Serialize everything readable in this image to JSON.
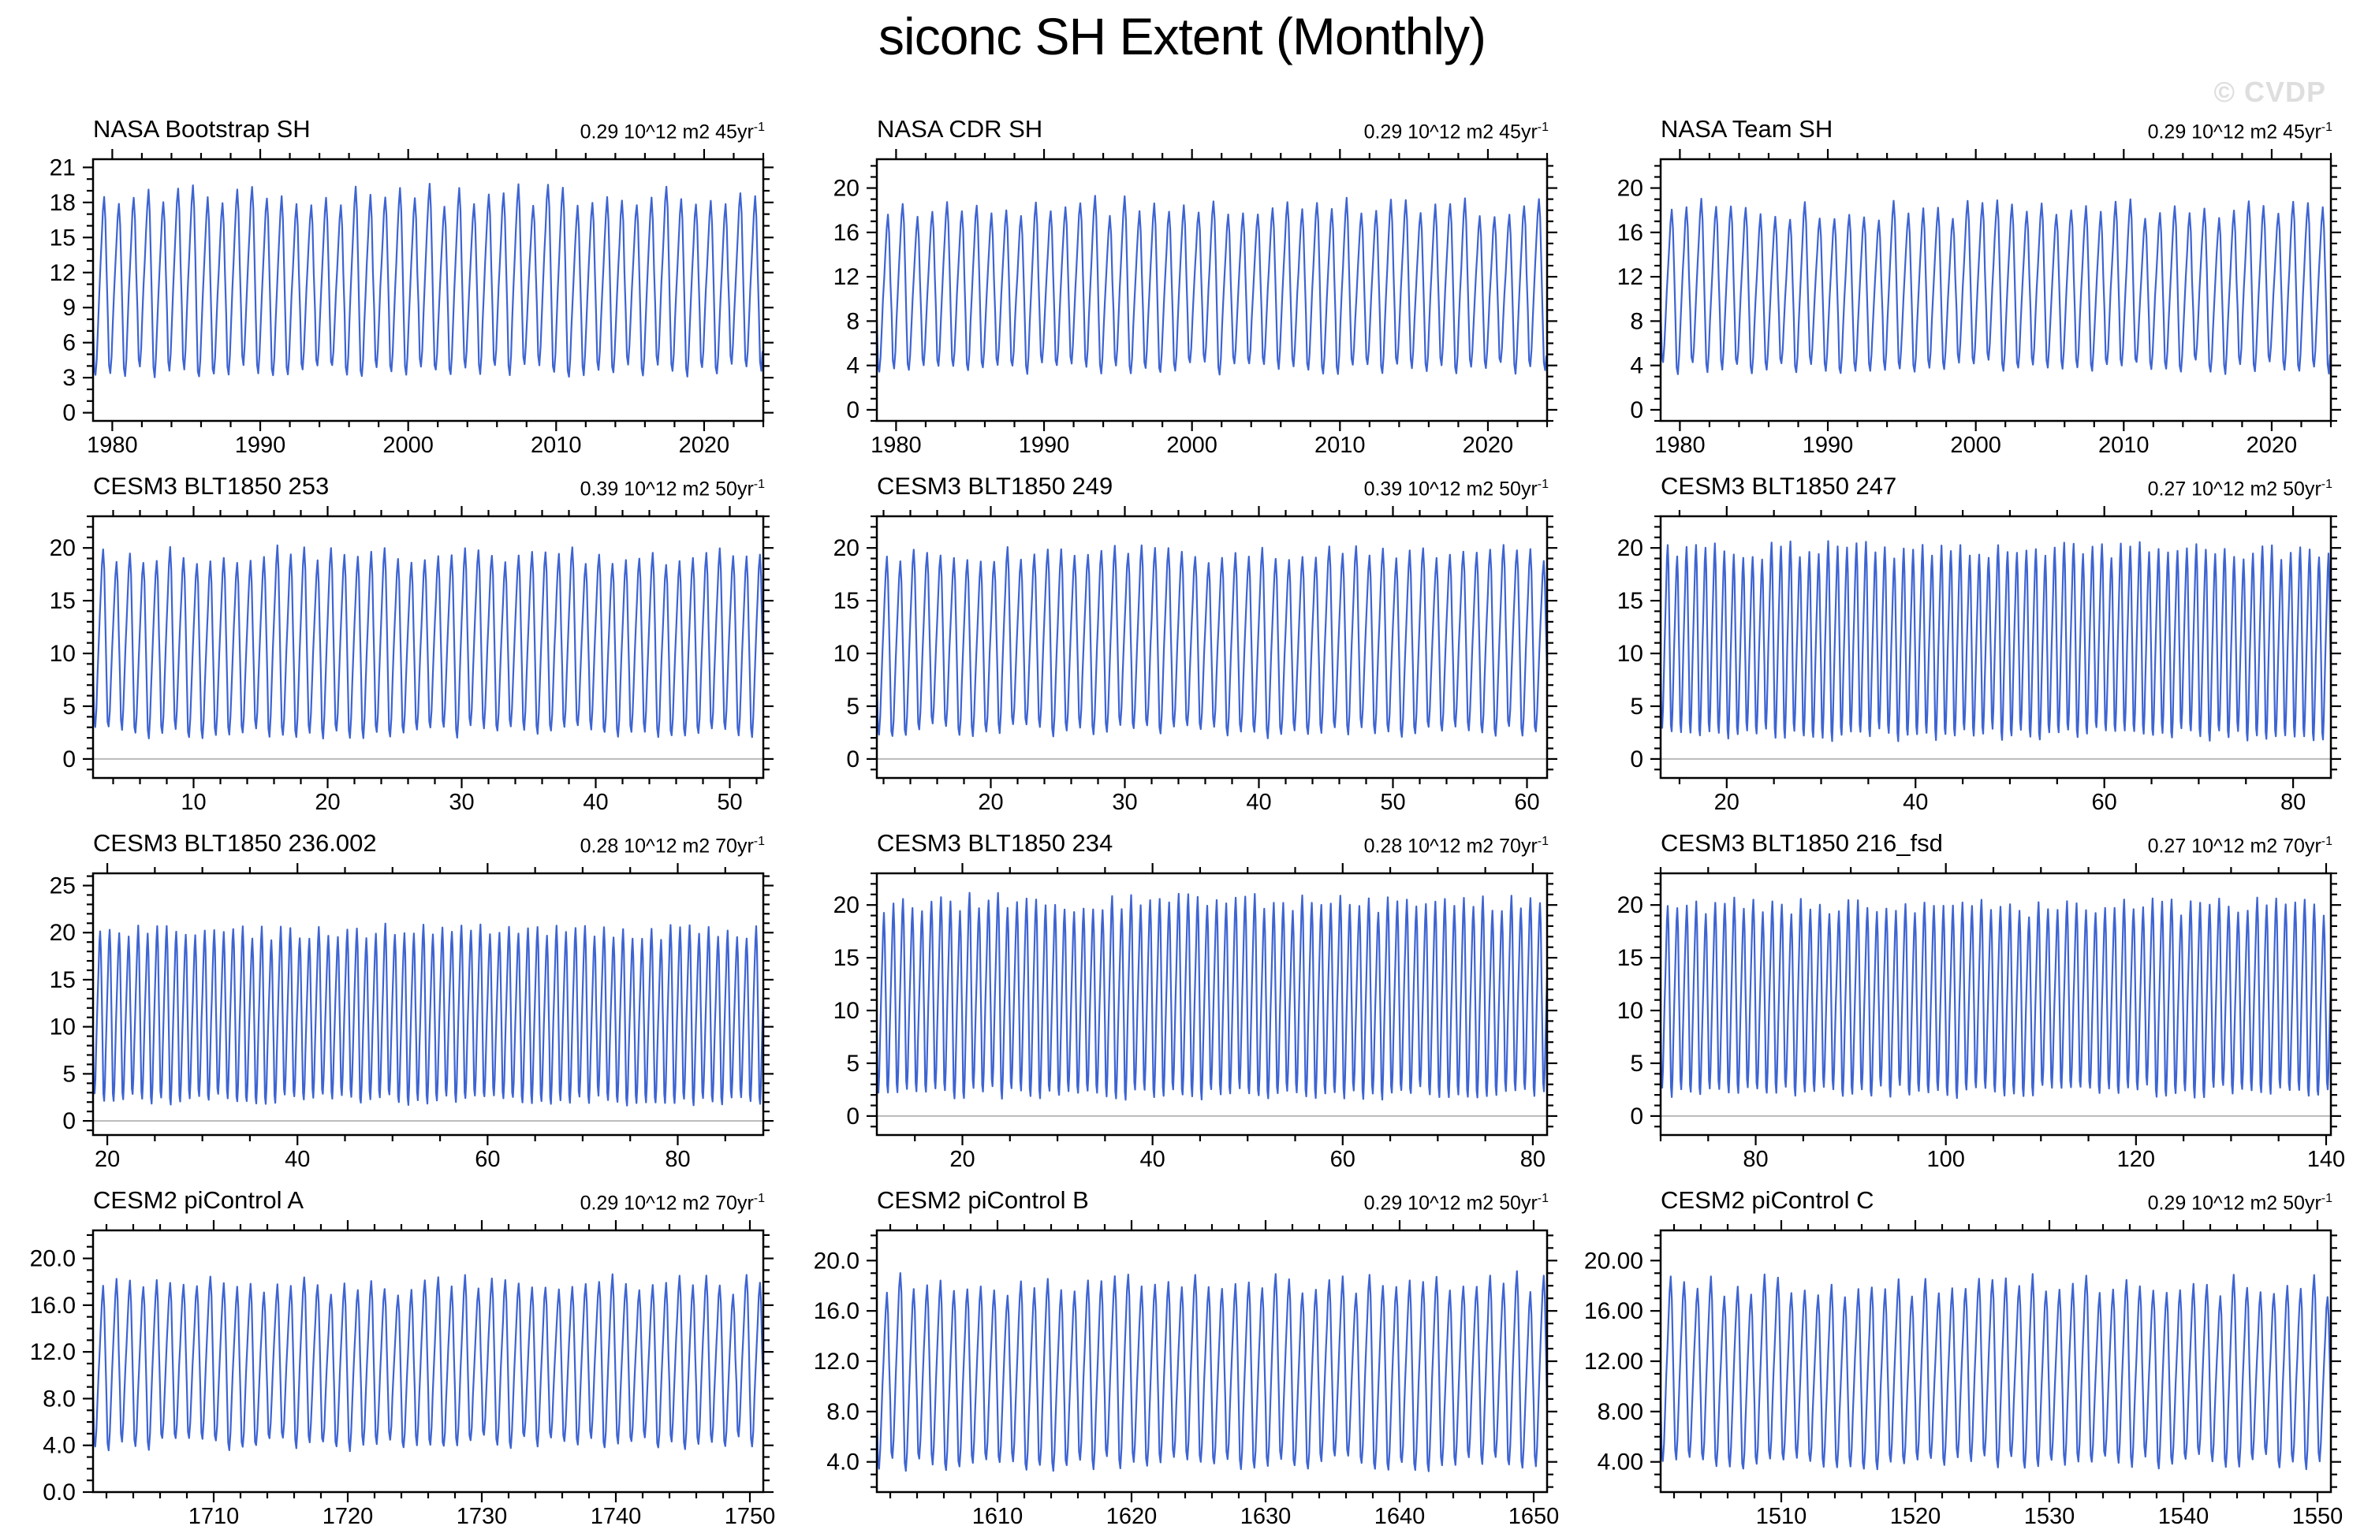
{
  "page": {
    "title": "siconc SH Extent (Monthly)",
    "watermark": "© CVDP"
  },
  "colors": {
    "line": "#3E64D2",
    "zero_line": "#b9b9b9",
    "frame": "#000000",
    "watermark": "#dedede"
  },
  "chart_data": {
    "type": "line",
    "layout": {
      "rows": 4,
      "cols": 3,
      "grid": "off",
      "legend": "none"
    },
    "description": "Monthly Southern Hemisphere sea ice extent (10^12 m2) seasonal-cycle time series; each panel oscillates annually between its summer minimum and winter maximum.",
    "panels": [
      {
        "title": "NASA Bootstrap SH",
        "annotation": "0.29 10^12 m2 45yr",
        "annotation_sup": "-1",
        "x_range": [
          1978.7,
          2024
        ],
        "x_ticks": [
          1980,
          1990,
          2000,
          2010,
          2020
        ],
        "x_tick_labels": [
          "1980",
          "1990",
          "2000",
          "2010",
          "2020"
        ],
        "x_minor_step": 2,
        "y_range": [
          -0.7,
          21.7
        ],
        "y_ticks": [
          0,
          3,
          6,
          9,
          12,
          15,
          18,
          21
        ],
        "y_tick_labels": [
          "0",
          "3",
          "6",
          "9",
          "12",
          "15",
          "18",
          "21"
        ],
        "y_minor_step": 1,
        "zero_line": false,
        "summer_min": 3.3,
        "winter_max": 18.6,
        "seed": 11
      },
      {
        "title": "NASA CDR SH",
        "annotation": "0.29 10^12 m2 45yr",
        "annotation_sup": "-1",
        "x_range": [
          1978.7,
          2024
        ],
        "x_ticks": [
          1980,
          1990,
          2000,
          2010,
          2020
        ],
        "x_tick_labels": [
          "1980",
          "1990",
          "2000",
          "2010",
          "2020"
        ],
        "x_minor_step": 2,
        "y_range": [
          -1.0,
          22.6
        ],
        "y_ticks": [
          0,
          4,
          8,
          12,
          16,
          20
        ],
        "y_tick_labels": [
          "0",
          "4",
          "8",
          "12",
          "16",
          "20"
        ],
        "y_minor_step": 1,
        "zero_line": false,
        "summer_min": 3.4,
        "winter_max": 18.3,
        "seed": 22
      },
      {
        "title": "NASA Team SH",
        "annotation": "0.29 10^12 m2 45yr",
        "annotation_sup": "-1",
        "x_range": [
          1978.7,
          2024
        ],
        "x_ticks": [
          1980,
          1990,
          2000,
          2010,
          2020
        ],
        "x_tick_labels": [
          "1980",
          "1990",
          "2000",
          "2010",
          "2020"
        ],
        "x_minor_step": 2,
        "y_range": [
          -1.0,
          22.6
        ],
        "y_ticks": [
          0,
          4,
          8,
          12,
          16,
          20
        ],
        "y_tick_labels": [
          "0",
          "4",
          "8",
          "12",
          "16",
          "20"
        ],
        "y_minor_step": 1,
        "zero_line": false,
        "summer_min": 3.6,
        "winter_max": 18.0,
        "seed": 33
      },
      {
        "title": "CESM3 BLT1850 253",
        "annotation": "0.39 10^12 m2 50yr",
        "annotation_sup": "-1",
        "x_range": [
          2.5,
          52.5
        ],
        "x_ticks": [
          10,
          20,
          30,
          40,
          50
        ],
        "x_tick_labels": [
          "10",
          "20",
          "30",
          "40",
          "50"
        ],
        "x_minor_step": 2,
        "y_range": [
          -1.8,
          23.0
        ],
        "y_ticks": [
          0,
          5,
          10,
          15,
          20
        ],
        "y_tick_labels": [
          "0",
          "5",
          "10",
          "15",
          "20"
        ],
        "y_minor_step": 1,
        "zero_line": true,
        "summer_min": 2.2,
        "winter_max": 19.4,
        "seed": 44
      },
      {
        "title": "CESM3 BLT1850 249",
        "annotation": "0.39 10^12 m2 50yr",
        "annotation_sup": "-1",
        "x_range": [
          11.5,
          61.5
        ],
        "x_ticks": [
          20,
          30,
          40,
          50,
          60
        ],
        "x_tick_labels": [
          "20",
          "30",
          "40",
          "50",
          "60"
        ],
        "x_minor_step": 2,
        "y_range": [
          -1.8,
          23.0
        ],
        "y_ticks": [
          0,
          5,
          10,
          15,
          20
        ],
        "y_tick_labels": [
          "0",
          "5",
          "10",
          "15",
          "20"
        ],
        "y_minor_step": 1,
        "zero_line": true,
        "summer_min": 2.3,
        "winter_max": 19.5,
        "seed": 55
      },
      {
        "title": "CESM3 BLT1850 247",
        "annotation": "0.27 10^12 m2 50yr",
        "annotation_sup": "-1",
        "x_range": [
          13,
          84
        ],
        "x_ticks": [
          20,
          40,
          60,
          80
        ],
        "x_tick_labels": [
          "20",
          "40",
          "60",
          "80"
        ],
        "x_minor_step": 5,
        "y_range": [
          -1.8,
          23.0
        ],
        "y_ticks": [
          0,
          5,
          10,
          15,
          20
        ],
        "y_tick_labels": [
          "0",
          "5",
          "10",
          "15",
          "20"
        ],
        "y_minor_step": 1,
        "zero_line": true,
        "summer_min": 2.0,
        "winter_max": 19.8,
        "seed": 66
      },
      {
        "title": "CESM3 BLT1850 236.002",
        "annotation": "0.28 10^12 m2 70yr",
        "annotation_sup": "-1",
        "x_range": [
          18.5,
          89
        ],
        "x_ticks": [
          20,
          40,
          60,
          80
        ],
        "x_tick_labels": [
          "20",
          "40",
          "60",
          "80"
        ],
        "x_minor_step": 5,
        "y_range": [
          -1.5,
          26.3
        ],
        "y_ticks": [
          0,
          5,
          10,
          15,
          20,
          25
        ],
        "y_tick_labels": [
          "0",
          "5",
          "10",
          "15",
          "20",
          "25"
        ],
        "y_minor_step": 1,
        "zero_line": true,
        "summer_min": 1.9,
        "winter_max": 20.1,
        "seed": 77
      },
      {
        "title": "CESM3 BLT1850 234",
        "annotation": "0.28 10^12 m2 70yr",
        "annotation_sup": "-1",
        "x_range": [
          11,
          81.5
        ],
        "x_ticks": [
          20,
          40,
          60,
          80
        ],
        "x_tick_labels": [
          "20",
          "40",
          "60",
          "80"
        ],
        "x_minor_step": 5,
        "y_range": [
          -1.8,
          23.0
        ],
        "y_ticks": [
          0,
          5,
          10,
          15,
          20
        ],
        "y_tick_labels": [
          "0",
          "5",
          "10",
          "15",
          "20"
        ],
        "y_minor_step": 1,
        "zero_line": true,
        "summer_min": 1.8,
        "winter_max": 20.2,
        "seed": 88
      },
      {
        "title": "CESM3 BLT1850 216_fsd",
        "annotation": "0.27 10^12 m2 70yr",
        "annotation_sup": "-1",
        "x_range": [
          70,
          140.5
        ],
        "x_ticks": [
          80,
          100,
          120,
          140
        ],
        "x_tick_labels": [
          "80",
          "100",
          "120",
          "140"
        ],
        "x_minor_step": 5,
        "y_range": [
          -1.8,
          23.0
        ],
        "y_ticks": [
          0,
          5,
          10,
          15,
          20
        ],
        "y_tick_labels": [
          "0",
          "5",
          "10",
          "15",
          "20"
        ],
        "y_minor_step": 1,
        "zero_line": true,
        "summer_min": 2.0,
        "winter_max": 19.8,
        "seed": 99
      },
      {
        "title": "CESM2 piControl A",
        "annotation": "0.29 10^12 m2 70yr",
        "annotation_sup": "-1",
        "x_range": [
          1701,
          1751
        ],
        "x_ticks": [
          1710,
          1720,
          1730,
          1740,
          1750
        ],
        "x_tick_labels": [
          "1710",
          "1720",
          "1730",
          "1740",
          "1750"
        ],
        "x_minor_step": 2,
        "y_range": [
          0,
          22.4
        ],
        "y_ticks": [
          0,
          4,
          8,
          12,
          16,
          20
        ],
        "y_tick_labels": [
          "0.0",
          "4.0",
          "8.0",
          "12.0",
          "16.0",
          "20.0"
        ],
        "y_minor_step": 1,
        "zero_line": false,
        "summer_min": 3.9,
        "winter_max": 17.8,
        "seed": 110
      },
      {
        "title": "CESM2 piControl B",
        "annotation": "0.29 10^12 m2 50yr",
        "annotation_sup": "-1",
        "x_range": [
          1601,
          1651
        ],
        "x_ticks": [
          1610,
          1620,
          1630,
          1640,
          1650
        ],
        "x_tick_labels": [
          "1610",
          "1620",
          "1630",
          "1640",
          "1650"
        ],
        "x_minor_step": 2,
        "y_range": [
          1.6,
          22.4
        ],
        "y_ticks": [
          4,
          8,
          12,
          16,
          20
        ],
        "y_tick_labels": [
          "4.0",
          "8.0",
          "12.0",
          "16.0",
          "20.0"
        ],
        "y_minor_step": 1,
        "zero_line": false,
        "summer_min": 3.6,
        "winter_max": 18.2,
        "seed": 121
      },
      {
        "title": "CESM2 piControl C",
        "annotation": "0.29 10^12 m2 50yr",
        "annotation_sup": "-1",
        "x_range": [
          1501,
          1551
        ],
        "x_ticks": [
          1510,
          1520,
          1530,
          1540,
          1550
        ],
        "x_tick_labels": [
          "1510",
          "1520",
          "1530",
          "1540",
          "1550"
        ],
        "x_minor_step": 2,
        "y_range": [
          1.6,
          22.4
        ],
        "y_ticks": [
          4,
          8,
          12,
          16,
          20
        ],
        "y_tick_labels": [
          "4.00",
          "8.00",
          "12.00",
          "16.00",
          "20.00"
        ],
        "y_minor_step": 1,
        "zero_line": false,
        "summer_min": 3.7,
        "winter_max": 18.0,
        "seed": 132
      }
    ],
    "seasonal_template_note": "Annual cycle: minimum in austral summer (Feb-Mar), maximum in Sep-Oct."
  }
}
